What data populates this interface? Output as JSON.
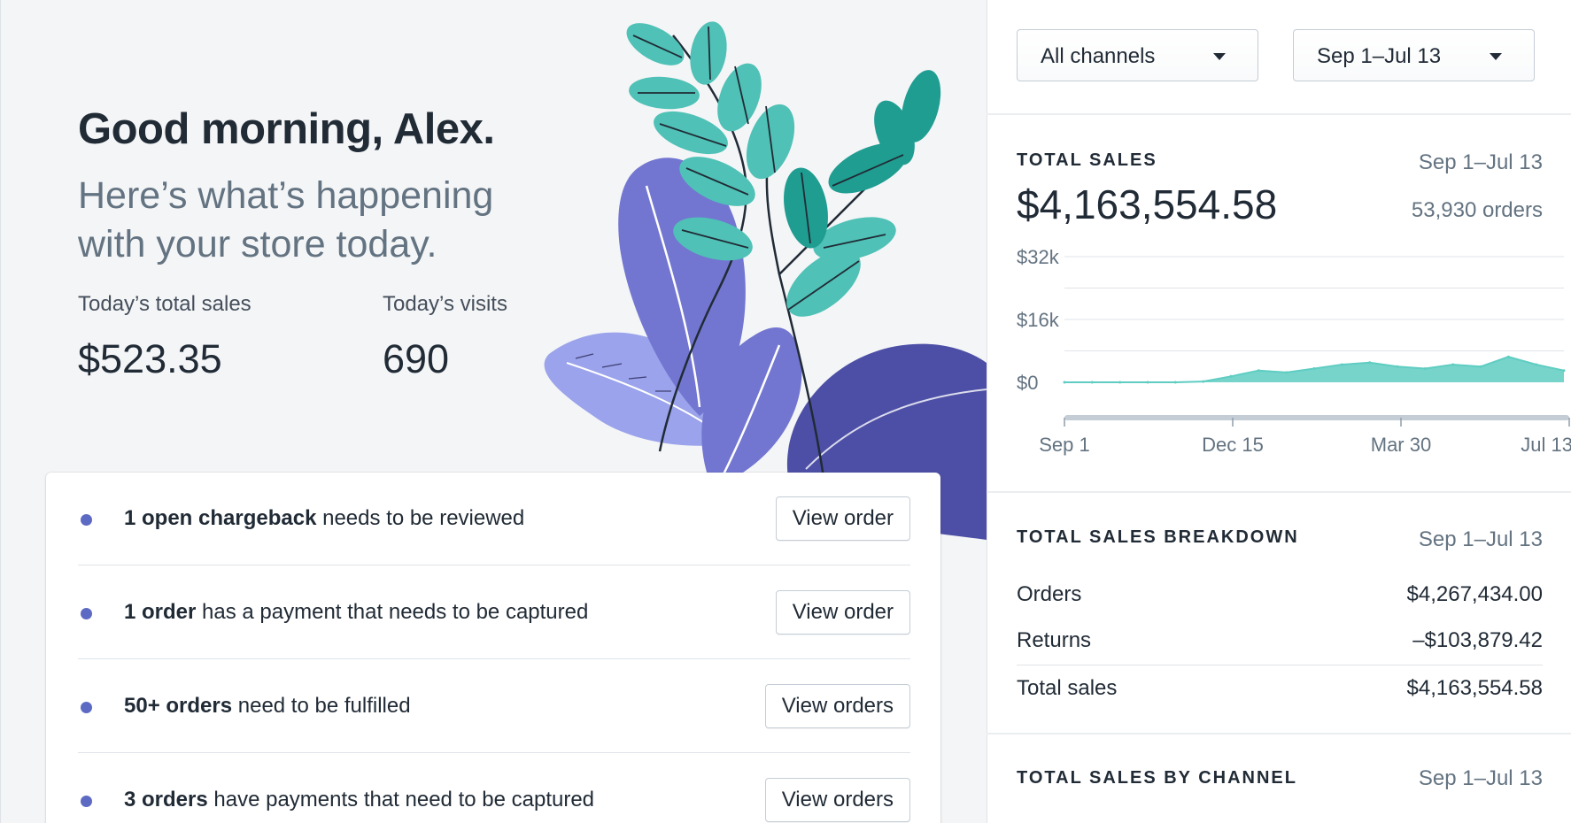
{
  "greeting": "Good morning, Alex.",
  "subtitle": "Here’s what’s happening with your store today.",
  "metrics": [
    {
      "label": "Today’s total sales",
      "value": "$523.35"
    },
    {
      "label": "Today’s visits",
      "value": "690"
    }
  ],
  "tasks": [
    {
      "bold": "1 open chargeback",
      "text": " needs to be reviewed",
      "button": "View order"
    },
    {
      "bold": "1 order",
      "text": " has a payment that needs to be captured",
      "button": "View order"
    },
    {
      "bold": "50+ orders",
      "text": " need to be fulfilled",
      "button": "View orders"
    },
    {
      "bold": "3 orders",
      "text": " have payments that need to be captured",
      "button": "View orders"
    }
  ],
  "filters": {
    "channel": "All channels",
    "date_range": "Sep 1–Jul 13"
  },
  "total_sales": {
    "title": "TOTAL SALES",
    "date": "Sep 1–Jul 13",
    "value": "$4,163,554.58",
    "orders": "53,930 orders"
  },
  "breakdown": {
    "title": "TOTAL SALES BREAKDOWN",
    "date": "Sep 1–Jul 13",
    "rows": [
      {
        "label": "Orders",
        "value": "$4,267,434.00"
      },
      {
        "label": "Returns",
        "value": "–$103,879.42"
      },
      {
        "label": "Total sales",
        "value": "$4,163,554.58"
      }
    ]
  },
  "by_channel": {
    "title": "TOTAL SALES BY CHANNEL",
    "date": "Sep 1–Jul 13"
  },
  "colors": {
    "accent": "#5c6ac4",
    "chart": "#5fcdc2"
  },
  "chart_data": {
    "type": "area",
    "title": "",
    "xlabel": "",
    "ylabel": "",
    "y_ticks": [
      "$32k",
      "$16k",
      "$0"
    ],
    "x_ticks": [
      "Sep 1",
      "Dec 15",
      "Mar 30",
      "Jul 13"
    ],
    "ylim": [
      0,
      32000
    ],
    "grid": true,
    "series": [
      {
        "x": [
          "Sep 1",
          "Oct 1",
          "Nov 1",
          "Dec 1",
          "Dec 15",
          "Jan 1",
          "Jan 15",
          "Feb 1",
          "Feb 15",
          "Mar 1",
          "Mar 15",
          "Mar 30",
          "Apr 15",
          "May 1",
          "May 15",
          "Jun 1",
          "Jun 15",
          "Jul 1",
          "Jul 13"
        ],
        "values": [
          0,
          0,
          0,
          0,
          0,
          200,
          1500,
          3000,
          2500,
          3500,
          4500,
          5000,
          4000,
          3500,
          4500,
          4000,
          6500,
          4500,
          3000
        ]
      }
    ]
  }
}
